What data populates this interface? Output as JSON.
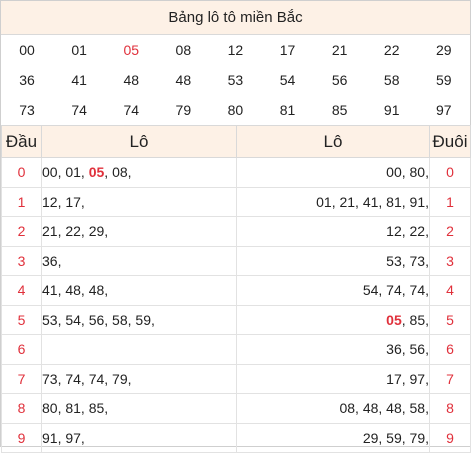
{
  "title": "Bảng lô tô miền Bắc",
  "numbers_grid": [
    [
      {
        "v": "00"
      },
      {
        "v": "01"
      },
      {
        "v": "05",
        "hl": true
      },
      {
        "v": "08"
      },
      {
        "v": "12"
      },
      {
        "v": "17"
      },
      {
        "v": "21"
      },
      {
        "v": "22"
      },
      {
        "v": "29"
      }
    ],
    [
      {
        "v": "36"
      },
      {
        "v": "41"
      },
      {
        "v": "48"
      },
      {
        "v": "48"
      },
      {
        "v": "53"
      },
      {
        "v": "54"
      },
      {
        "v": "56"
      },
      {
        "v": "58"
      },
      {
        "v": "59"
      }
    ],
    [
      {
        "v": "73"
      },
      {
        "v": "74"
      },
      {
        "v": "74"
      },
      {
        "v": "79"
      },
      {
        "v": "80"
      },
      {
        "v": "81"
      },
      {
        "v": "85"
      },
      {
        "v": "91"
      },
      {
        "v": "97"
      }
    ]
  ],
  "table": {
    "headers": {
      "dau": "Đầu",
      "lo_left": "Lô",
      "lo_right": "Lô",
      "duoi": "Đuôi"
    },
    "rows": [
      {
        "dau": "0",
        "lo_dau": [
          {
            "t": "00, "
          },
          {
            "t": "01, "
          },
          {
            "t": "05",
            "hl": true
          },
          {
            "t": ", 08,"
          }
        ],
        "lo_duoi": [
          {
            "t": "00, 80,"
          }
        ],
        "duoi": "0"
      },
      {
        "dau": "1",
        "lo_dau": [
          {
            "t": "12, 17,"
          }
        ],
        "lo_duoi": [
          {
            "t": "01, 21, 41, 81, 91,"
          }
        ],
        "duoi": "1"
      },
      {
        "dau": "2",
        "lo_dau": [
          {
            "t": "21, 22, 29,"
          }
        ],
        "lo_duoi": [
          {
            "t": "12, 22,"
          }
        ],
        "duoi": "2"
      },
      {
        "dau": "3",
        "lo_dau": [
          {
            "t": "36,"
          }
        ],
        "lo_duoi": [
          {
            "t": "53, 73,"
          }
        ],
        "duoi": "3"
      },
      {
        "dau": "4",
        "lo_dau": [
          {
            "t": "41, 48, 48,"
          }
        ],
        "lo_duoi": [
          {
            "t": "54, 74, 74,"
          }
        ],
        "duoi": "4"
      },
      {
        "dau": "5",
        "lo_dau": [
          {
            "t": "53, 54, 56, 58, 59,"
          }
        ],
        "lo_duoi": [
          {
            "t": "05",
            "hl": true
          },
          {
            "t": ", 85,"
          }
        ],
        "duoi": "5"
      },
      {
        "dau": "6",
        "lo_dau": [],
        "lo_duoi": [
          {
            "t": "36, 56,"
          }
        ],
        "duoi": "6"
      },
      {
        "dau": "7",
        "lo_dau": [
          {
            "t": "73, 74, 74, 79,"
          }
        ],
        "lo_duoi": [
          {
            "t": "17, 97,"
          }
        ],
        "duoi": "7"
      },
      {
        "dau": "8",
        "lo_dau": [
          {
            "t": "80, 81, 85,"
          }
        ],
        "lo_duoi": [
          {
            "t": "08, 48, 48, 58,"
          }
        ],
        "duoi": "8"
      },
      {
        "dau": "9",
        "lo_dau": [
          {
            "t": "91, 97,"
          }
        ],
        "lo_duoi": [
          {
            "t": "29, 59, 79,"
          }
        ],
        "duoi": "9"
      }
    ]
  },
  "colors": {
    "header_bg": "#fdf1e6",
    "accent_red": "#e0303b",
    "border": "#d9d9d9"
  }
}
